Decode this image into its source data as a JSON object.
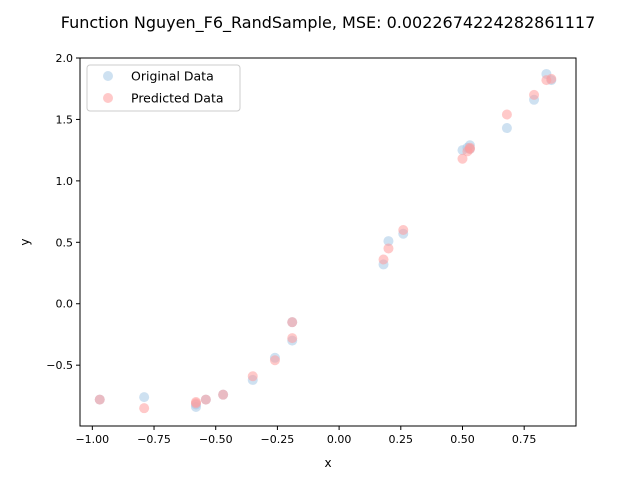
{
  "chart_data": {
    "type": "scatter",
    "title": "Function Nguyen_F6_RandSample, MSE: 0.0022674224282861117",
    "xlabel": "x",
    "ylabel": "y",
    "xlim": [
      -1.05,
      0.96
    ],
    "ylim": [
      -0.995,
      2.0
    ],
    "xticks": [
      -1.0,
      -0.75,
      -0.5,
      -0.25,
      0.0,
      0.25,
      0.5,
      0.75
    ],
    "xtick_labels": [
      "−1.00",
      "−0.75",
      "−0.50",
      "−0.25",
      "0.00",
      "0.25",
      "0.50",
      "0.75"
    ],
    "yticks": [
      -0.5,
      0.0,
      0.5,
      1.0,
      1.5,
      2.0
    ],
    "ytick_labels": [
      "−0.5",
      "0.0",
      "0.5",
      "1.0",
      "1.5",
      "2.0"
    ],
    "grid": false,
    "legend": "upper-left",
    "series": [
      {
        "name": "Original Data",
        "color": "#a6c8e6",
        "points": [
          [
            -0.97,
            -0.78
          ],
          [
            -0.79,
            -0.76
          ],
          [
            -0.58,
            -0.84
          ],
          [
            -0.58,
            -0.82
          ],
          [
            -0.54,
            -0.78
          ],
          [
            -0.47,
            -0.74
          ],
          [
            -0.35,
            -0.62
          ],
          [
            -0.26,
            -0.44
          ],
          [
            -0.19,
            -0.3
          ],
          [
            -0.19,
            -0.15
          ],
          [
            0.18,
            0.32
          ],
          [
            0.2,
            0.51
          ],
          [
            0.26,
            0.57
          ],
          [
            0.5,
            1.25
          ],
          [
            0.52,
            1.27
          ],
          [
            0.53,
            1.26
          ],
          [
            0.53,
            1.29
          ],
          [
            0.68,
            1.43
          ],
          [
            0.79,
            1.66
          ],
          [
            0.84,
            1.87
          ],
          [
            0.86,
            1.82
          ]
        ]
      },
      {
        "name": "Predicted Data",
        "color": "#ff9c9c",
        "points": [
          [
            -0.97,
            -0.78
          ],
          [
            -0.79,
            -0.85
          ],
          [
            -0.58,
            -0.81
          ],
          [
            -0.58,
            -0.8
          ],
          [
            -0.54,
            -0.78
          ],
          [
            -0.47,
            -0.74
          ],
          [
            -0.35,
            -0.59
          ],
          [
            -0.26,
            -0.46
          ],
          [
            -0.19,
            -0.28
          ],
          [
            -0.19,
            -0.15
          ],
          [
            0.18,
            0.36
          ],
          [
            0.2,
            0.45
          ],
          [
            0.26,
            0.6
          ],
          [
            0.5,
            1.18
          ],
          [
            0.52,
            1.24
          ],
          [
            0.53,
            1.26
          ],
          [
            0.53,
            1.27
          ],
          [
            0.68,
            1.54
          ],
          [
            0.79,
            1.7
          ],
          [
            0.84,
            1.82
          ],
          [
            0.86,
            1.83
          ]
        ]
      }
    ]
  }
}
